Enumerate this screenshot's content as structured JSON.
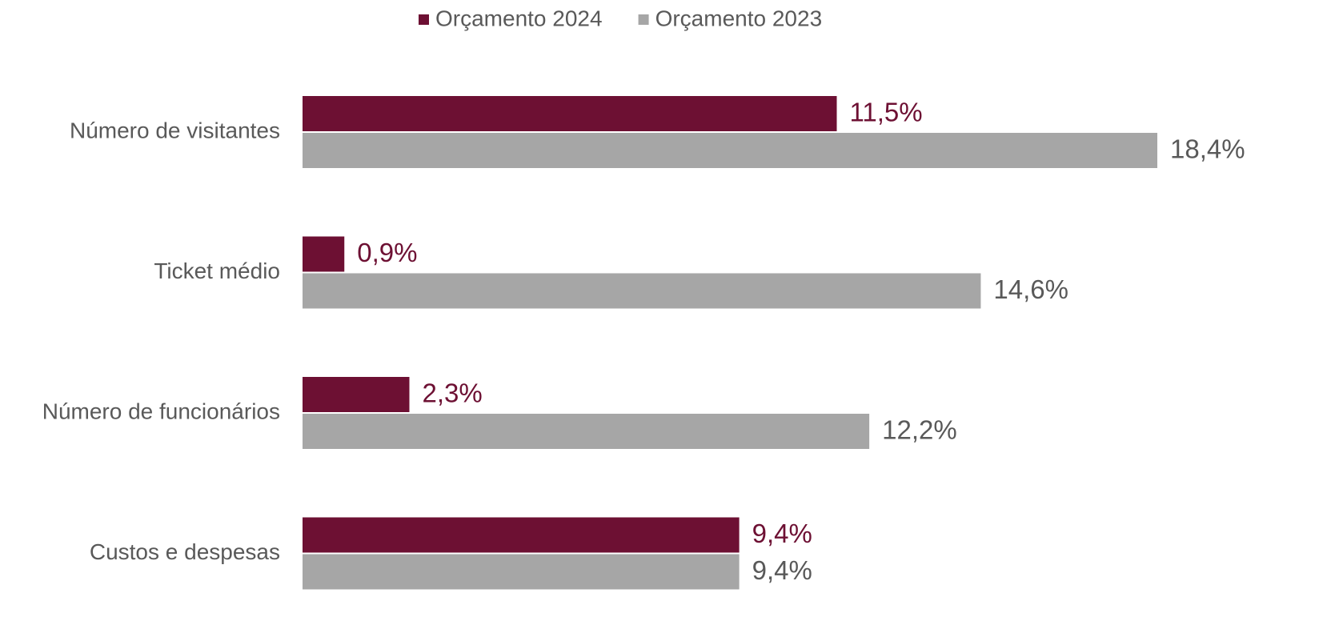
{
  "chart_data": {
    "type": "bar",
    "orientation": "horizontal",
    "categories": [
      "Número de visitantes",
      "Ticket médio",
      "Número de funcionários",
      "Custos e despesas"
    ],
    "series": [
      {
        "name": "Orçamento 2024",
        "color": "#6d1033",
        "values": [
          11.5,
          0.9,
          2.3,
          9.4
        ],
        "value_labels": [
          "11,5%",
          "0,9%",
          "2,3%",
          "9,4%"
        ]
      },
      {
        "name": "Orçamento 2023",
        "color": "#a6a6a6",
        "values": [
          18.4,
          14.6,
          12.2,
          9.4
        ],
        "value_labels": [
          "18,4%",
          "14,6%",
          "12,2%",
          "9,4%"
        ]
      }
    ],
    "legend": "top"
  }
}
